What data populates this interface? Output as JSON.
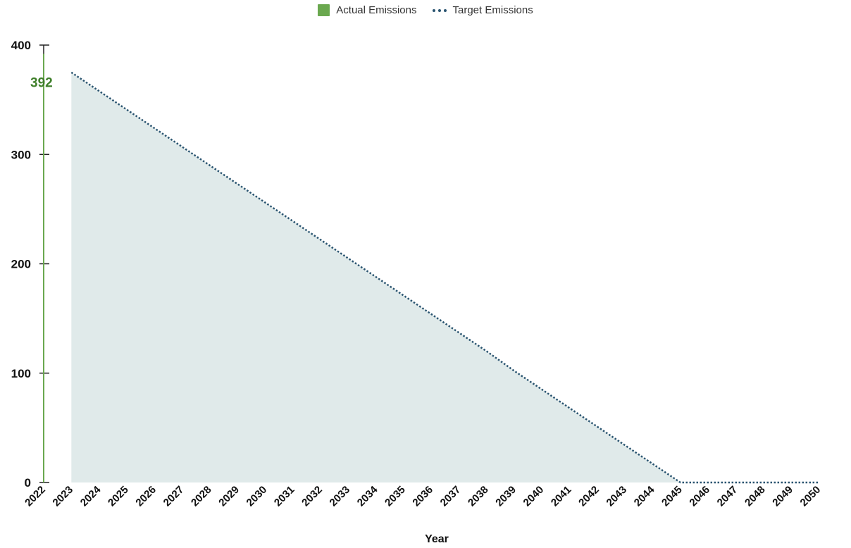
{
  "chart_data": {
    "type": "line",
    "xlabel": "Year",
    "ylabel": "",
    "ylim": [
      0,
      400
    ],
    "y_ticks": [
      0,
      100,
      200,
      300,
      400
    ],
    "x": [
      2022,
      2023,
      2024,
      2025,
      2026,
      2027,
      2028,
      2029,
      2030,
      2031,
      2032,
      2033,
      2034,
      2035,
      2036,
      2037,
      2038,
      2039,
      2040,
      2041,
      2042,
      2043,
      2044,
      2045,
      2046,
      2047,
      2048,
      2049,
      2050
    ],
    "legend_position": "top-center",
    "grid": false,
    "series": [
      {
        "name": "Actual Emissions",
        "color": "#6aa84f",
        "style": "bar",
        "x": [
          2022
        ],
        "values": [
          392
        ],
        "data_labels": [
          "392"
        ]
      },
      {
        "name": "Target Emissions",
        "color": "#2a5470",
        "fill_color": "#e0eaea",
        "style": "dotted-line-with-area",
        "x": [
          2023,
          2024,
          2025,
          2026,
          2027,
          2028,
          2029,
          2030,
          2031,
          2032,
          2033,
          2034,
          2035,
          2036,
          2037,
          2038,
          2039,
          2040,
          2041,
          2042,
          2043,
          2044,
          2045,
          2046,
          2047,
          2048,
          2049,
          2050
        ],
        "values": [
          375,
          358,
          341,
          324,
          307,
          290,
          273,
          256,
          239,
          222,
          205,
          188,
          171,
          154,
          137,
          120,
          102,
          85,
          68,
          51,
          34,
          17,
          0,
          0,
          0,
          0,
          0,
          0
        ]
      }
    ]
  }
}
